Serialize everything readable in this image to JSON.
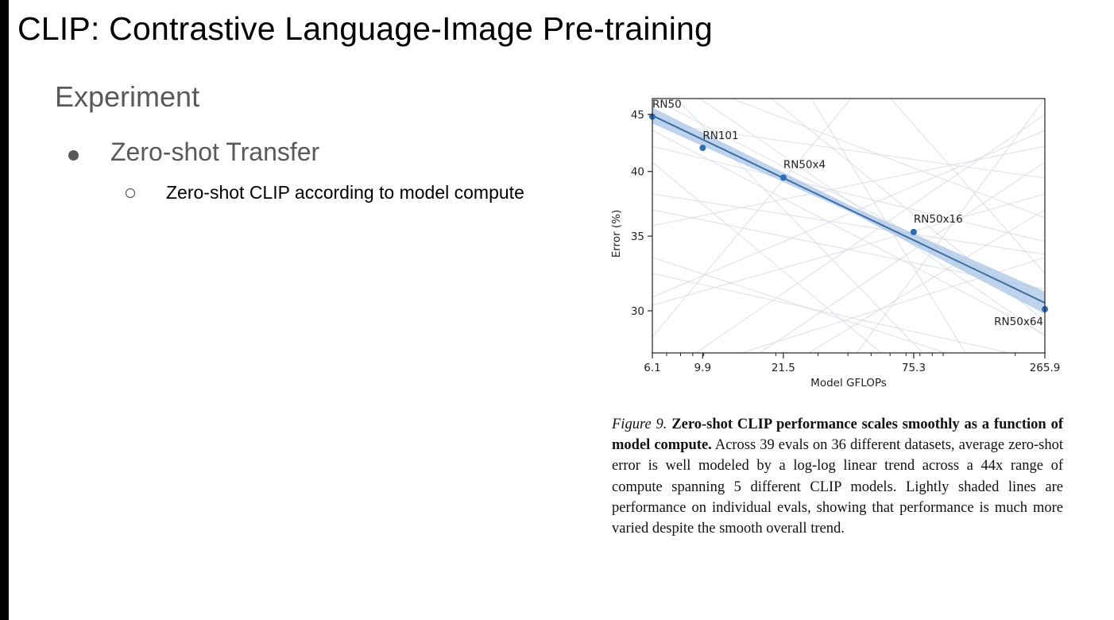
{
  "slide": {
    "title": "CLIP: Contrastive Language-Image Pre-training",
    "section": "Experiment",
    "bullet_level1": "Zero-shot Transfer",
    "bullet_level2": "Zero-shot CLIP according to model compute"
  },
  "caption": {
    "figure_label": "Figure 9.",
    "bold_text": "Zero-shot CLIP performance scales smoothly as a function of model compute.",
    "body_text": "Across 39 evals on 36 different datasets, average zero-shot error is well modeled by a log-log linear trend across a 44x range of compute spanning 5 different CLIP models. Lightly shaded lines are performance on individual evals, showing that performance is much more varied despite the smooth overall trend."
  },
  "colors": {
    "trend_line": "#3a6ea5",
    "band": "#a9c4e6",
    "point": "#2f6db5",
    "background_lines": "#d7dce4"
  },
  "chart_data": {
    "type": "scatter",
    "x_scale": "log",
    "y_scale": "log",
    "xlabel": "Model GFLOPs",
    "ylabel": "Error (%)",
    "xlim": [
      6.1,
      265.9
    ],
    "ylim": [
      27.5,
      46.5
    ],
    "x_ticks": [
      6.1,
      9.9,
      21.5,
      75.3,
      265.9
    ],
    "x_tick_labels": [
      "6.1",
      "9.9",
      "21.5",
      "75.3",
      "265.9"
    ],
    "y_ticks": [
      30,
      35,
      40,
      45
    ],
    "y_tick_labels": [
      "30",
      "35",
      "40",
      "45"
    ],
    "points": [
      {
        "label": "RN50",
        "x": 6.1,
        "y": 44.8
      },
      {
        "label": "RN101",
        "x": 9.9,
        "y": 42.0
      },
      {
        "label": "RN50x4",
        "x": 21.5,
        "y": 39.5
      },
      {
        "label": "RN50x16",
        "x": 75.3,
        "y": 35.3
      },
      {
        "label": "RN50x64",
        "x": 265.9,
        "y": 30.1
      }
    ],
    "trend": {
      "x": [
        6.1,
        265.9
      ],
      "y": [
        44.9,
        30.5
      ]
    },
    "grid": false,
    "legend": "none"
  }
}
